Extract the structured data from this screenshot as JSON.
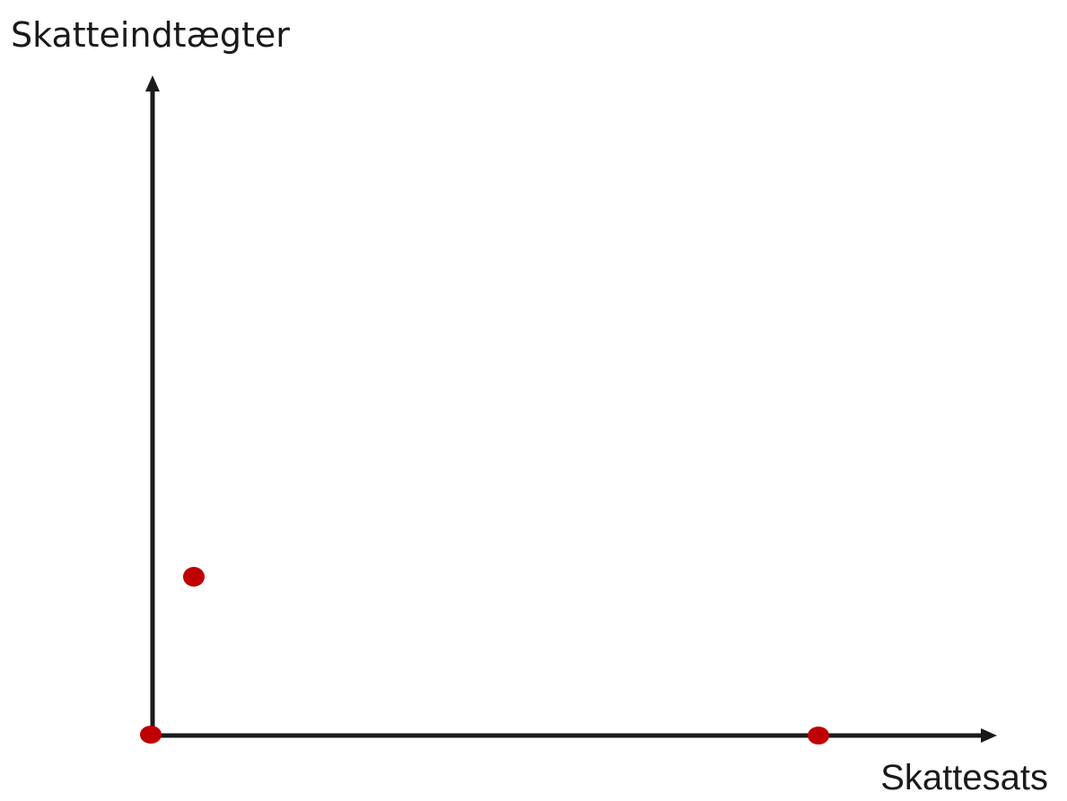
{
  "axes": {
    "y_label": "Skatteindtægter",
    "x_label": "Skattesats"
  }
}
